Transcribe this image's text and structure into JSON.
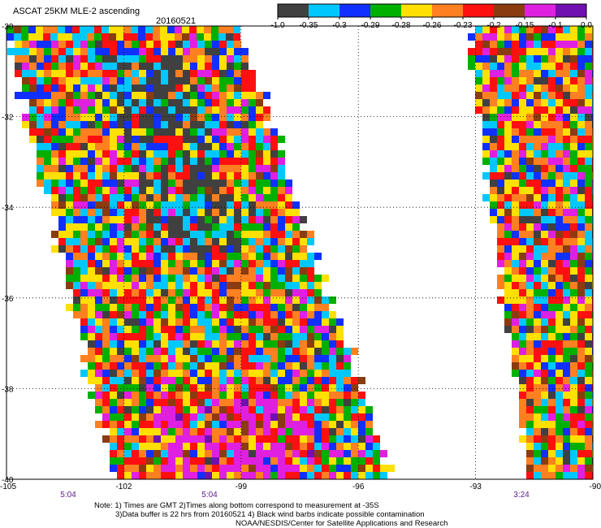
{
  "header": {
    "title": "ASCAT 25KM MLE-2 ascending",
    "date": "20160521"
  },
  "legend": {
    "colors": [
      "#404040",
      "#00c8ff",
      "#1030ff",
      "#00b000",
      "#ffe000",
      "#ff8020",
      "#ff1010",
      "#8a3c10",
      "#e020e0",
      "#7010b0"
    ],
    "labels": [
      "-1.0",
      "-0.35",
      "-0.3",
      "-0.29",
      "-0.28",
      "-0.26",
      "-0.23",
      "-0.2",
      "-0.15",
      "-0.1",
      "0.0"
    ]
  },
  "axes": {
    "lat_ticks": [
      "-30",
      "-32",
      "-34",
      "-36",
      "-38",
      "-40"
    ],
    "lon_ticks": [
      "-105",
      "-102",
      "-99",
      "-96",
      "-93",
      "-90"
    ]
  },
  "times": [
    "5:04",
    "5:04",
    "3:24"
  ],
  "notes": {
    "line1": "Note: 1) Times are GMT 2)Times along bottom correspond to measurement at -35S",
    "line2": "3)Data buffer is 22 hrs from 20160521 4) Black wind barbs indicate possible contamination",
    "line3": "NOAA/NESDIS/Center for Satellite Applications and Research"
  }
}
